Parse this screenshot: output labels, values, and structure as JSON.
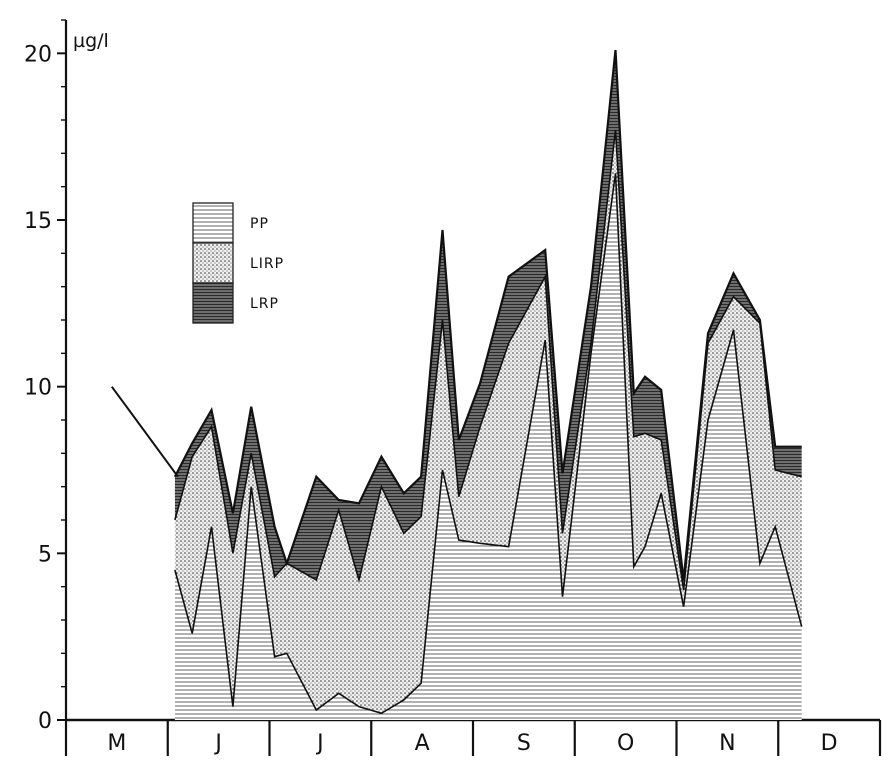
{
  "chart_data": {
    "type": "area",
    "stacked": true,
    "y_unit": "µg/l",
    "ylim": [
      0,
      21
    ],
    "yticks": [
      0,
      5,
      10,
      15,
      20
    ],
    "months": [
      "M",
      "J",
      "J",
      "A",
      "S",
      "O",
      "N",
      "D"
    ],
    "x_range_months": [
      0,
      8
    ],
    "legend": [
      {
        "name": "PP",
        "pattern": "hlines"
      },
      {
        "name": "LIRP",
        "pattern": "dots"
      },
      {
        "name": "LRP",
        "pattern": "dark"
      }
    ],
    "legend_position": "upper-left",
    "lead_in_line": [
      [
        0.45,
        10.0
      ],
      [
        1.1,
        7.3
      ]
    ],
    "x": [
      1.07,
      1.24,
      1.43,
      1.64,
      1.82,
      2.05,
      2.17,
      2.46,
      2.68,
      2.88,
      3.1,
      3.32,
      3.49,
      3.7,
      3.86,
      4.07,
      4.35,
      4.71,
      4.88,
      5.16,
      5.4,
      5.58,
      5.69,
      5.85,
      6.07,
      6.31,
      6.56,
      6.82,
      6.97,
      7.23
    ],
    "series": [
      {
        "name": "PP",
        "values": [
          4.5,
          2.6,
          5.8,
          0.4,
          7.0,
          1.9,
          2.0,
          0.3,
          0.8,
          0.4,
          0.2,
          0.6,
          1.1,
          7.5,
          5.4,
          5.3,
          5.2,
          11.4,
          3.7,
          11.0,
          16.4,
          4.6,
          5.2,
          6.8,
          3.4,
          9.0,
          11.7,
          4.7,
          5.8,
          2.8
        ]
      },
      {
        "name": "LIRP",
        "values": [
          1.5,
          5.3,
          3.0,
          4.6,
          1.0,
          2.4,
          2.7,
          3.9,
          5.5,
          3.8,
          6.8,
          5.0,
          5.0,
          4.5,
          1.3,
          3.5,
          6.1,
          1.9,
          1.9,
          0.3,
          1.3,
          3.9,
          3.4,
          1.6,
          0.5,
          2.3,
          1.0,
          7.2,
          1.7,
          4.5
        ]
      },
      {
        "name": "LRP",
        "values": [
          1.3,
          0.4,
          0.5,
          1.2,
          1.4,
          1.5,
          0.0,
          3.1,
          0.3,
          2.3,
          0.9,
          1.2,
          1.2,
          2.7,
          1.7,
          1.3,
          2.0,
          0.8,
          1.8,
          1.7,
          2.4,
          1.3,
          1.7,
          1.5,
          0.3,
          0.3,
          0.7,
          0.1,
          0.7,
          0.9
        ]
      }
    ]
  }
}
